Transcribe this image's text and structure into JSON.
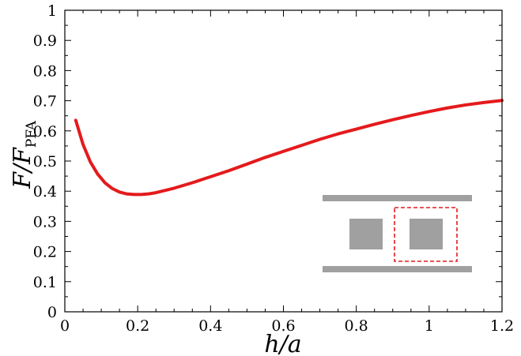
{
  "chart_data": {
    "type": "line",
    "xlabel": "h/a",
    "ylabel": {
      "main": "F/F",
      "subscript": "PFA"
    },
    "xlim": [
      0,
      1.2
    ],
    "ylim": [
      0,
      1
    ],
    "x_ticks": [
      "0",
      "0.2",
      "0.4",
      "0.6",
      "0.8",
      "1",
      "1.2"
    ],
    "y_ticks": [
      "0",
      "0.1",
      "0.2",
      "0.3",
      "0.4",
      "0.5",
      "0.6",
      "0.7",
      "0.8",
      "0.9",
      "1"
    ],
    "grid": false,
    "series": [
      {
        "color": "#e41a1c",
        "x": [
          0.03,
          0.05,
          0.07,
          0.09,
          0.11,
          0.13,
          0.15,
          0.17,
          0.19,
          0.21,
          0.23,
          0.25,
          0.3,
          0.35,
          0.4,
          0.45,
          0.5,
          0.55,
          0.6,
          0.65,
          0.7,
          0.75,
          0.8,
          0.85,
          0.9,
          0.95,
          1.0,
          1.05,
          1.1,
          1.15,
          1.2
        ],
        "y": [
          0.635,
          0.555,
          0.497,
          0.457,
          0.428,
          0.409,
          0.397,
          0.391,
          0.389,
          0.389,
          0.391,
          0.395,
          0.41,
          0.428,
          0.448,
          0.468,
          0.49,
          0.512,
          0.532,
          0.552,
          0.572,
          0.59,
          0.606,
          0.622,
          0.637,
          0.651,
          0.664,
          0.676,
          0.686,
          0.694,
          0.701
        ]
      }
    ],
    "inset": {
      "description": "schematic: two horizontal plates with two square blocks between them; right block outlined by dashed box",
      "plate_color": "#a0a0a0",
      "block_color": "#a0a0a0",
      "highlight_color": "#e41a1c"
    }
  }
}
